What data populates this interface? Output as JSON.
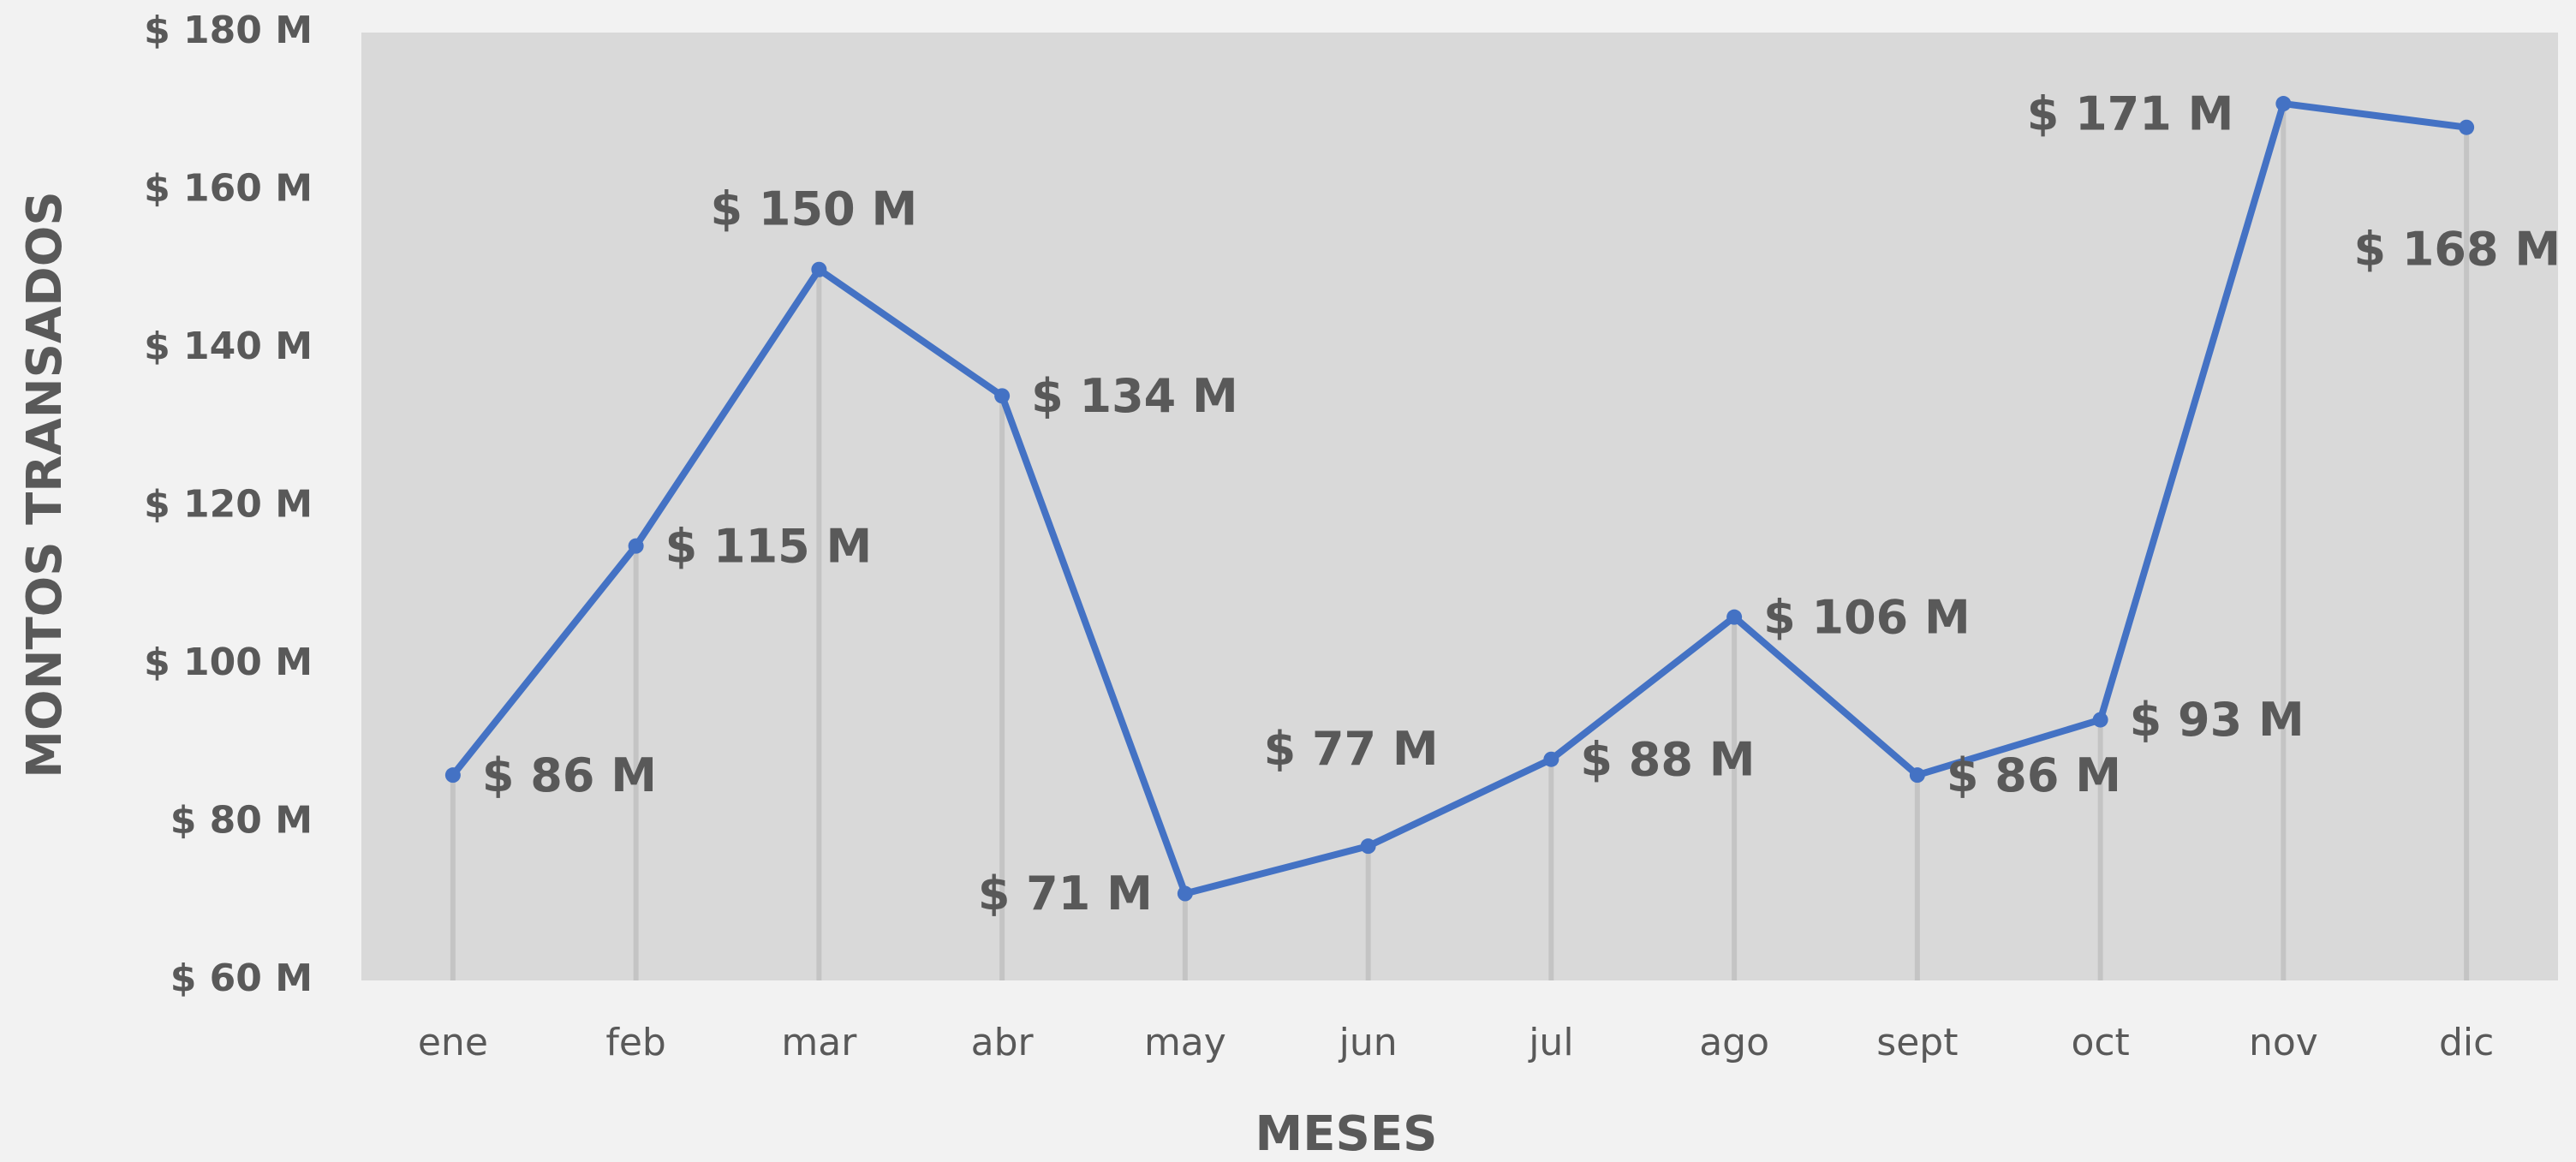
{
  "chart_data": {
    "type": "line",
    "categories": [
      "ene",
      "feb",
      "mar",
      "abr",
      "may",
      "jun",
      "jul",
      "ago",
      "sept",
      "oct",
      "nov",
      "dic"
    ],
    "series": [
      {
        "name": "Montos",
        "color": "#4472c4",
        "values": [
          86,
          115,
          150,
          134,
          71,
          77,
          88,
          106,
          86,
          93,
          171,
          168
        ],
        "value_labels": [
          "$ 86 M",
          "$ 115 M",
          "$ 150 M",
          "$ 134 M",
          "$ 71 M",
          "$ 77 M",
          "$ 88 M",
          "$ 106 M",
          "$ 86 M",
          "$ 93 M",
          "$ 171 M",
          "$ 168 M"
        ]
      }
    ],
    "ylim": [
      60,
      180
    ],
    "yticks": [
      {
        "value": 60,
        "label": "$ 60 M"
      },
      {
        "value": 80,
        "label": "$ 80 M"
      },
      {
        "value": 100,
        "label": "$ 100 M"
      },
      {
        "value": 120,
        "label": "$ 120 M"
      },
      {
        "value": 140,
        "label": "$ 140 M"
      },
      {
        "value": 160,
        "label": "$ 160 M"
      },
      {
        "value": 180,
        "label": "$ 180 M"
      }
    ],
    "y_label": "MONTOS TRANSADOS",
    "x_label": "MESES",
    "drop_lines": true
  }
}
